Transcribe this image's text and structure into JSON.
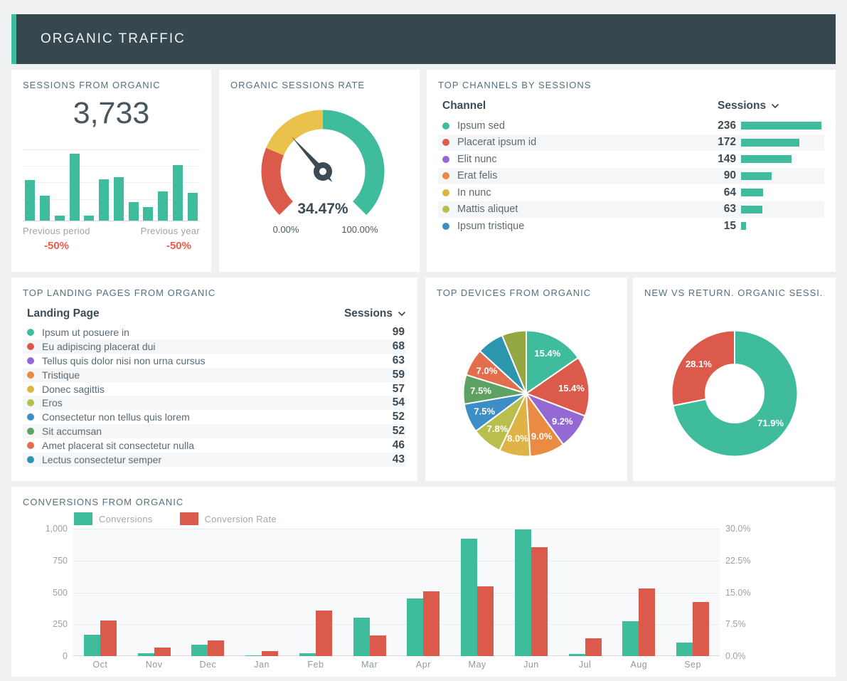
{
  "header": {
    "title": "ORGANIC TRAFFIC"
  },
  "palette": {
    "teal": "#3fbc9c",
    "red": "#dc5a4b",
    "purple": "#9569d3",
    "orange": "#e98b43",
    "gold": "#dfb345",
    "olive": "#b9bf4c",
    "blue": "#3d8ec5",
    "green": "#5ea263",
    "orange_red": "#e36e4d",
    "cyan": "#2c96ae",
    "olive_dark": "#93a843",
    "header_bg": "#37474f",
    "accent": "#3fbd9d",
    "negative": "#ee5a4c",
    "gauge_yellow": "#e9c14b"
  },
  "cards": {
    "sessions": {
      "title": "SESSIONS FROM ORGANIC",
      "kpi": "3,733",
      "prev_period_label": "Previous period",
      "prev_period_value": "-50%",
      "prev_year_label": "Previous year",
      "prev_year_value": "-50%"
    },
    "gauge": {
      "title": "ORGANIC SESSIONS RATE"
    },
    "channels": {
      "title": "TOP CHANNELS BY SESSIONS",
      "col_channel": "Channel",
      "col_sessions": "Sessions"
    },
    "landing": {
      "title": "TOP LANDING PAGES FROM ORGANIC",
      "col_page": "Landing Page",
      "col_sessions": "Sessions"
    },
    "devices": {
      "title": "TOP DEVICES FROM ORGANIC"
    },
    "new_vs_return": {
      "title": "NEW VS RETURN. ORGANIC SESSI..."
    },
    "conversions": {
      "title": "CONVERSIONS FROM ORGANIC",
      "legend": [
        {
          "name": "Conversions",
          "color": "#3fbc9c"
        },
        {
          "name": "Conversion Rate",
          "color": "#dc5a4b"
        }
      ]
    }
  },
  "chart_data": [
    {
      "id": "sessions-trend",
      "type": "bar",
      "title": "SESSIONS FROM ORGANIC",
      "kpi": 3733,
      "color": "#3fbc9c",
      "ylim": [
        0,
        100
      ],
      "grid": true,
      "values": [
        56,
        35,
        7,
        93,
        7,
        57,
        60,
        26,
        19,
        41,
        77,
        39
      ],
      "comparisons": [
        {
          "label": "Previous period",
          "delta": "-50%"
        },
        {
          "label": "Previous year",
          "delta": "-50%"
        }
      ]
    },
    {
      "id": "organic-sessions-rate",
      "type": "gauge",
      "title": "ORGANIC SESSIONS RATE",
      "value_pct": 34.47,
      "value_label": "34.47%",
      "min_label": "0.00%",
      "max_label": "100.00%",
      "range": [
        0,
        100
      ],
      "arc_span_deg": 270,
      "segments": [
        {
          "from": 0,
          "to": 25,
          "color": "#dc5a4b"
        },
        {
          "from": 25,
          "to": 50,
          "color": "#e9c14b"
        },
        {
          "from": 50,
          "to": 100,
          "color": "#3fbc9c"
        }
      ]
    },
    {
      "id": "top-channels",
      "type": "table",
      "title": "TOP CHANNELS BY SESSIONS",
      "columns": [
        "Channel",
        "Sessions"
      ],
      "sorted_by": "Sessions",
      "value_bars": true,
      "rows": [
        {
          "label": "Ipsum sed",
          "value": 236,
          "color": "#3fbc9c"
        },
        {
          "label": "Placerat ipsum id",
          "value": 172,
          "color": "#dc5a4b"
        },
        {
          "label": "Elit nunc",
          "value": 149,
          "color": "#9569d3"
        },
        {
          "label": "Erat felis",
          "value": 90,
          "color": "#e98b43"
        },
        {
          "label": "In nunc",
          "value": 64,
          "color": "#dfb345"
        },
        {
          "label": "Mattis aliquet",
          "value": 63,
          "color": "#b9bf4c"
        },
        {
          "label": "Ipsum tristique",
          "value": 15,
          "color": "#3d8ec5"
        }
      ]
    },
    {
      "id": "top-landing-pages",
      "type": "table",
      "title": "TOP LANDING PAGES FROM ORGANIC",
      "columns": [
        "Landing Page",
        "Sessions"
      ],
      "sorted_by": "Sessions",
      "value_bars": false,
      "rows": [
        {
          "label": "Ipsum ut posuere in",
          "value": 99,
          "color": "#3fbc9c"
        },
        {
          "label": "Eu adipiscing placerat dui",
          "value": 68,
          "color": "#dc5a4b"
        },
        {
          "label": "Tellus quis dolor nisi non urna cursus",
          "value": 63,
          "color": "#9569d3"
        },
        {
          "label": "Tristique",
          "value": 59,
          "color": "#e98b43"
        },
        {
          "label": "Donec sagittis",
          "value": 57,
          "color": "#dfb345"
        },
        {
          "label": "Eros",
          "value": 54,
          "color": "#b9bf4c"
        },
        {
          "label": "Consectetur non tellus quis lorem",
          "value": 52,
          "color": "#3d8ec5"
        },
        {
          "label": "Sit accumsan",
          "value": 52,
          "color": "#5ea263"
        },
        {
          "label": "Amet placerat sit consectetur nulla",
          "value": 46,
          "color": "#e36e4d"
        },
        {
          "label": "Lectus consectetur semper",
          "value": 43,
          "color": "#2c96ae"
        }
      ]
    },
    {
      "id": "top-devices",
      "type": "pie",
      "title": "TOP DEVICES FROM ORGANIC",
      "values": [
        15.4,
        15.4,
        9.2,
        9.0,
        8.0,
        7.8,
        7.5,
        7.5,
        7.0,
        6.9,
        6.3
      ],
      "labels": [
        "15.4%",
        "15.4%",
        "9.2%",
        "9.0%",
        "8.0%",
        "7.8%",
        "7.5%",
        "7.5%",
        "7.0%",
        "",
        ""
      ],
      "colors": [
        "#3fbc9c",
        "#dc5a4b",
        "#9569d3",
        "#e98b43",
        "#dfb345",
        "#b9bf4c",
        "#3d8ec5",
        "#5ea263",
        "#e36e4d",
        "#2c96ae",
        "#93a843"
      ],
      "start_angle": "top",
      "direction": "clockwise"
    },
    {
      "id": "new-vs-returning",
      "type": "pie",
      "subtype": "donut",
      "title": "NEW VS RETURN. ORGANIC SESSI...",
      "values": [
        71.9,
        28.1
      ],
      "labels": [
        "71.9%",
        "28.1%"
      ],
      "colors": [
        "#3fbc9c",
        "#dc5a4b"
      ],
      "start_angle": "top",
      "direction": "clockwise"
    },
    {
      "id": "conversions-from-organic",
      "type": "bar",
      "title": "CONVERSIONS FROM ORGANIC",
      "categories": [
        "Oct",
        "Nov",
        "Dec",
        "Jan",
        "Feb",
        "Mar",
        "Apr",
        "May",
        "Jun",
        "Jul",
        "Aug",
        "Sep"
      ],
      "series": [
        {
          "name": "Conversions",
          "axis": "left",
          "color": "#3fbc9c",
          "values": [
            170,
            25,
            90,
            5,
            25,
            300,
            455,
            920,
            995,
            15,
            275,
            105
          ]
        },
        {
          "name": "Conversion Rate",
          "axis": "right",
          "color": "#dc5a4b",
          "values": [
            8.4,
            2.1,
            3.7,
            1.2,
            10.8,
            4.8,
            15.2,
            16.5,
            25.7,
            4.2,
            15.9,
            12.8
          ]
        }
      ],
      "left_axis": {
        "ticks": [
          "1,000",
          "750",
          "500",
          "250",
          "0"
        ],
        "max": 1000
      },
      "right_axis": {
        "ticks": [
          "30.0%",
          "22.5%",
          "15.0%",
          "7.5%",
          "0.0%"
        ],
        "max": 30
      },
      "legend_position": "top-left",
      "grid": true
    }
  ]
}
